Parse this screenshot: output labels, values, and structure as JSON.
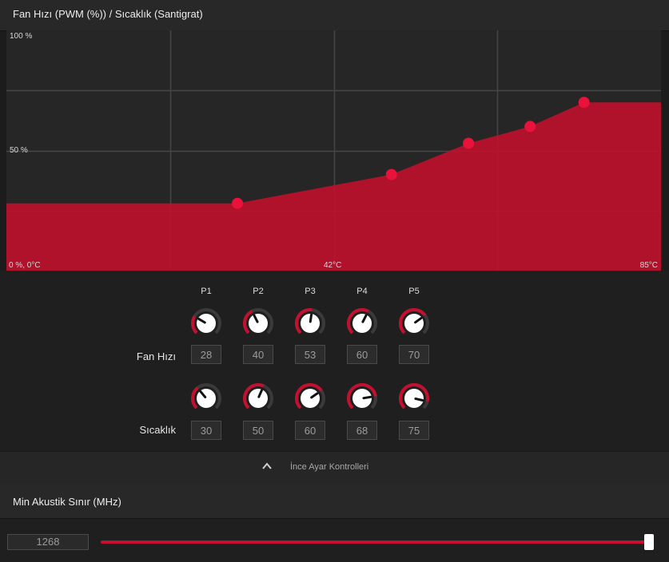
{
  "fan_curve": {
    "header_title": "Fan Hızı (PWM (%)) / Sıcaklık (Santigrat)",
    "y_max_label": "100 %",
    "y_mid_label": "50 %",
    "origin_label": "0 %, 0°C",
    "x_mid_label": "42°C",
    "x_max_label": "85°C",
    "accent_color": "#c4102e",
    "point_color": "#e8123a"
  },
  "chart_data": {
    "type": "area",
    "x_label": "",
    "y_label": "",
    "xlim": [
      0,
      85
    ],
    "ylim": [
      0,
      100
    ],
    "series": [
      {
        "points": [
          {
            "x": 0,
            "y": 28
          },
          {
            "x": 30,
            "y": 28
          },
          {
            "x": 50,
            "y": 40
          },
          {
            "x": 60,
            "y": 53
          },
          {
            "x": 68,
            "y": 60
          },
          {
            "x": 75,
            "y": 70
          },
          {
            "x": 85,
            "y": 70
          }
        ]
      }
    ],
    "control_points": [
      {
        "label": "P1",
        "x": 30,
        "y": 28
      },
      {
        "label": "P2",
        "x": 50,
        "y": 40
      },
      {
        "label": "P3",
        "x": 60,
        "y": 53
      },
      {
        "label": "P4",
        "x": 68,
        "y": 60
      },
      {
        "label": "P5",
        "x": 75,
        "y": 70
      }
    ]
  },
  "controls": {
    "columns": [
      "P1",
      "P2",
      "P3",
      "P4",
      "P5"
    ],
    "fan_speed_label": "Fan Hızı",
    "temperature_label": "Sıcaklık",
    "fan_speed_values": [
      "28",
      "40",
      "53",
      "60",
      "70"
    ],
    "temperature_values": [
      "30",
      "50",
      "60",
      "68",
      "75"
    ],
    "fine_tune_label": "İnce Ayar Kontrolleri"
  },
  "acoustic_limit": {
    "header_title": "Min Akustik Sınır (MHz)",
    "value": "1268",
    "slider_fraction": 1.0
  }
}
